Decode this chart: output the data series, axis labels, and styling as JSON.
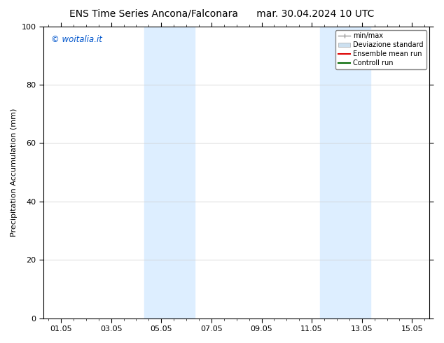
{
  "title_left": "ENS Time Series Ancona/Falconara",
  "title_right": "mar. 30.04.2024 10 UTC",
  "ylabel": "Precipitation Accumulation (mm)",
  "watermark": "© woitalia.it",
  "watermark_color": "#0055cc",
  "ylim": [
    0,
    100
  ],
  "yticks": [
    0,
    20,
    40,
    60,
    80,
    100
  ],
  "xtick_labels": [
    "01.05",
    "03.05",
    "05.05",
    "07.05",
    "09.05",
    "11.05",
    "13.05",
    "15.05"
  ],
  "xtick_positions": [
    0,
    2,
    4,
    6,
    8,
    10,
    12,
    14
  ],
  "xlim": [
    -0.7,
    14.7
  ],
  "shaded_regions": [
    {
      "x_start": 3.33,
      "x_end": 5.33,
      "color": "#ddeeff"
    },
    {
      "x_start": 10.33,
      "x_end": 12.33,
      "color": "#ddeeff"
    }
  ],
  "legend_entries": [
    {
      "label": "min/max",
      "color": "#999999",
      "lw": 1.0
    },
    {
      "label": "Deviazione standard",
      "color": "#cce0f0",
      "lw": 6
    },
    {
      "label": "Ensemble mean run",
      "color": "#dd0000",
      "lw": 1.5
    },
    {
      "label": "Controll run",
      "color": "#006600",
      "lw": 1.5
    }
  ],
  "bg_color": "#ffffff",
  "plot_bg_color": "#ffffff",
  "grid_color": "#cccccc",
  "title_fontsize": 10,
  "label_fontsize": 8,
  "tick_fontsize": 8
}
